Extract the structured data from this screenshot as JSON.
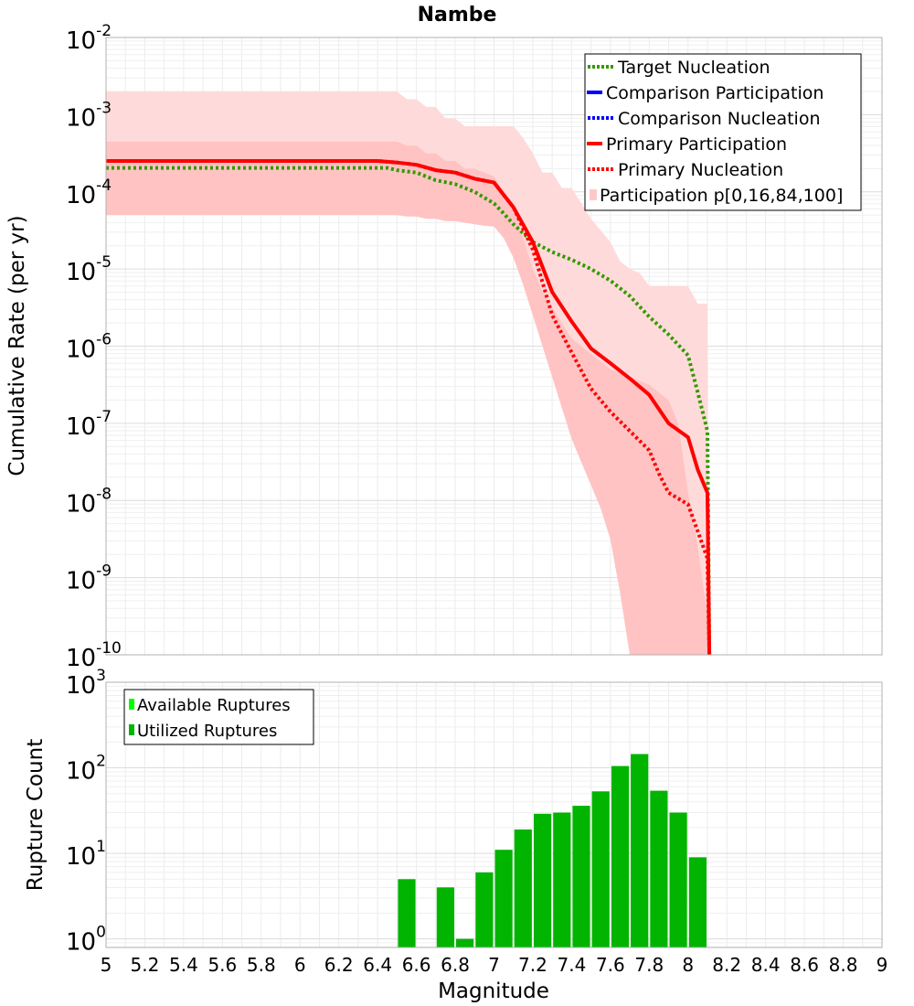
{
  "chart_data": [
    {
      "type": "line",
      "title": "Nambe",
      "xlabel": "",
      "ylabel": "Cumulative Rate (per yr)",
      "xlim": [
        5,
        9
      ],
      "ylim_log10": [
        -10,
        -2
      ],
      "y_scale": "log",
      "ytick_labels": [
        {
          "base": "10",
          "exp": "-2"
        },
        {
          "base": "10",
          "exp": "-3"
        },
        {
          "base": "10",
          "exp": "-4"
        },
        {
          "base": "10",
          "exp": "-5"
        },
        {
          "base": "10",
          "exp": "-6"
        },
        {
          "base": "10",
          "exp": "-7"
        },
        {
          "base": "10",
          "exp": "-8"
        },
        {
          "base": "10",
          "exp": "-9"
        },
        {
          "base": "10",
          "exp": "-10"
        }
      ],
      "legend_position": "top-right",
      "legend": [
        {
          "label": "Target Nucleation",
          "color": "#339900",
          "style": "dotted"
        },
        {
          "label": "Comparison Participation",
          "color": "#0000ff",
          "style": "solid"
        },
        {
          "label": "Comparison Nucleation",
          "color": "#0000ff",
          "style": "dotted"
        },
        {
          "label": "Primary Participation",
          "color": "#ff0000",
          "style": "solid"
        },
        {
          "label": "Primary Nucleation",
          "color": "#ff0000",
          "style": "dotted"
        },
        {
          "label": "Participation p[0,16,84,100]",
          "color": "#ffc8c8",
          "style": "band"
        }
      ],
      "bands": [
        {
          "name": "p0-p100",
          "color": "#ffdada",
          "x": [
            5,
            6.45,
            6.5,
            6.55,
            6.6,
            6.65,
            6.7,
            6.75,
            6.8,
            6.85,
            6.9,
            6.95,
            7.0,
            7.05,
            7.1,
            7.15,
            7.2,
            7.25,
            7.3,
            7.35,
            7.4,
            7.45,
            7.5,
            7.55,
            7.6,
            7.65,
            7.7,
            7.75,
            7.8,
            7.85,
            7.9,
            7.95,
            8.0,
            8.05,
            8.1,
            8.11
          ],
          "upper_log10": [
            -2.7,
            -2.7,
            -2.7,
            -2.8,
            -2.8,
            -2.9,
            -2.9,
            -3.05,
            -3.05,
            -3.15,
            -3.15,
            -3.15,
            -3.15,
            -3.15,
            -3.15,
            -3.3,
            -3.5,
            -3.75,
            -3.75,
            -3.95,
            -3.95,
            -4.15,
            -4.35,
            -4.5,
            -4.65,
            -4.9,
            -5.0,
            -5.05,
            -5.22,
            -5.22,
            -5.22,
            -5.22,
            -5.22,
            -5.45,
            -5.45,
            -10
          ],
          "lower_log10": [
            -4.28,
            -4.28,
            -4.28,
            -4.3,
            -4.3,
            -4.33,
            -4.33,
            -4.33,
            -4.35,
            -4.35,
            -4.38,
            -4.38,
            -4.4,
            -4.6,
            -4.85,
            -5.2,
            -5.6,
            -6.0,
            -6.4,
            -6.8,
            -7.2,
            -7.5,
            -7.8,
            -8.1,
            -8.5,
            -9.2,
            -10,
            -10,
            -10,
            -10,
            -10,
            -10,
            -10,
            -10,
            -10,
            -10
          ]
        },
        {
          "name": "p16-p84",
          "color": "#ffc3c3",
          "x": [
            5,
            6.45,
            6.5,
            6.55,
            6.6,
            6.65,
            6.7,
            6.75,
            6.8,
            6.85,
            6.9,
            6.95,
            7.0,
            7.05,
            7.1,
            7.15,
            7.2,
            7.25,
            7.3,
            7.35,
            7.4,
            7.45,
            7.5,
            7.55,
            7.6,
            7.65,
            7.7,
            7.75,
            7.8,
            7.85,
            7.9,
            7.95,
            8.0,
            8.05,
            8.1,
            8.11
          ],
          "upper_log10": [
            -3.35,
            -3.35,
            -3.35,
            -3.4,
            -3.4,
            -3.5,
            -3.5,
            -3.6,
            -3.6,
            -3.7,
            -3.7,
            -3.75,
            -3.8,
            -4.0,
            -4.2,
            -4.6,
            -5.0,
            -5.3,
            -5.5,
            -5.7,
            -5.9,
            -6.0,
            -6.1,
            -6.2,
            -6.3,
            -6.35,
            -6.4,
            -6.45,
            -6.5,
            -6.6,
            -6.7,
            -7.0,
            -7.9,
            -8.6,
            -9.5,
            -10
          ],
          "lower_log10": [
            -4.3,
            -4.3,
            -4.3,
            -4.32,
            -4.32,
            -4.35,
            -4.35,
            -4.38,
            -4.38,
            -4.4,
            -4.42,
            -4.44,
            -4.45,
            -4.6,
            -4.85,
            -5.2,
            -5.6,
            -6.0,
            -6.4,
            -6.8,
            -7.2,
            -7.5,
            -7.8,
            -8.1,
            -8.5,
            -9.2,
            -10,
            -10,
            -10,
            -10,
            -10,
            -10,
            -10,
            -10,
            -10,
            -10
          ]
        }
      ],
      "series": [
        {
          "name": "Target Nucleation",
          "color": "#339900",
          "style": "dotted",
          "x": [
            5,
            6.45,
            6.5,
            6.6,
            6.7,
            6.8,
            6.9,
            7.0,
            7.05,
            7.1,
            7.2,
            7.3,
            7.4,
            7.5,
            7.6,
            7.7,
            7.8,
            7.9,
            8.0,
            8.05,
            8.1,
            8.11
          ],
          "y_log10": [
            -3.69,
            -3.69,
            -3.72,
            -3.75,
            -3.85,
            -3.9,
            -4.0,
            -4.15,
            -4.28,
            -4.42,
            -4.65,
            -4.78,
            -4.88,
            -5.0,
            -5.15,
            -5.35,
            -5.62,
            -5.85,
            -6.12,
            -6.6,
            -7.1,
            -10
          ]
        },
        {
          "name": "Primary Participation",
          "color": "#ff0000",
          "style": "solid",
          "x": [
            5,
            6.4,
            6.5,
            6.6,
            6.7,
            6.8,
            6.9,
            7.0,
            7.1,
            7.2,
            7.3,
            7.4,
            7.5,
            7.6,
            7.7,
            7.8,
            7.9,
            8.0,
            8.05,
            8.1,
            8.11
          ],
          "y_log10": [
            -3.6,
            -3.6,
            -3.62,
            -3.65,
            -3.72,
            -3.75,
            -3.83,
            -3.88,
            -4.2,
            -4.65,
            -5.3,
            -5.68,
            -6.03,
            -6.22,
            -6.42,
            -6.63,
            -7.0,
            -7.18,
            -7.6,
            -7.9,
            -10
          ]
        },
        {
          "name": "Primary Nucleation",
          "color": "#ff0000",
          "style": "dotted",
          "x": [
            5,
            6.4,
            6.5,
            6.6,
            6.7,
            6.8,
            6.9,
            7.0,
            7.1,
            7.2,
            7.3,
            7.4,
            7.5,
            7.6,
            7.7,
            7.8,
            7.85,
            7.9,
            8.0,
            8.05,
            8.1,
            8.11
          ],
          "y_log10": [
            -3.6,
            -3.6,
            -3.62,
            -3.65,
            -3.72,
            -3.75,
            -3.83,
            -3.88,
            -4.2,
            -4.75,
            -5.6,
            -6.08,
            -6.55,
            -6.85,
            -7.1,
            -7.35,
            -7.65,
            -7.9,
            -8.05,
            -8.4,
            -8.75,
            -10
          ]
        }
      ]
    },
    {
      "type": "bar",
      "xlabel": "Magnitude",
      "ylabel": "Rupture Count",
      "xlim": [
        5,
        9
      ],
      "ylim_log10": [
        -0.1,
        3
      ],
      "y_scale": "log",
      "xtick_labels": [
        "5",
        "5.2",
        "5.4",
        "5.6",
        "5.8",
        "6",
        "6.2",
        "6.4",
        "6.6",
        "6.8",
        "7",
        "7.2",
        "7.4",
        "7.6",
        "7.8",
        "8",
        "8.2",
        "8.4",
        "8.6",
        "8.8",
        "9"
      ],
      "ytick_labels": [
        {
          "base": "10",
          "exp": "3"
        },
        {
          "base": "10",
          "exp": "2"
        },
        {
          "base": "10",
          "exp": "1"
        },
        {
          "base": "10",
          "exp": "0"
        }
      ],
      "legend_position": "top-left",
      "legend": [
        {
          "label": "Available Ruptures",
          "color": "#00ff00"
        },
        {
          "label": "Utilized Ruptures",
          "color": "#00b400"
        }
      ],
      "bar_width": 0.1,
      "bar_color": "#00b400",
      "centers": [
        6.55,
        6.65,
        6.75,
        6.85,
        6.95,
        7.05,
        7.15,
        7.25,
        7.35,
        7.45,
        7.55,
        7.65,
        7.75,
        7.85,
        7.95,
        8.05
      ],
      "values": [
        5,
        0,
        4,
        1,
        6,
        11,
        19,
        29,
        30,
        36,
        53,
        105,
        145,
        54,
        30,
        9
      ]
    }
  ]
}
